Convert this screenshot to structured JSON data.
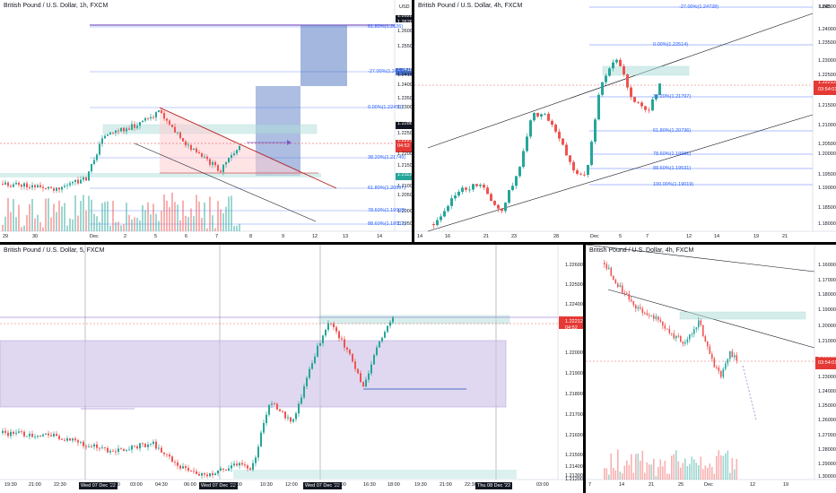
{
  "colors": {
    "bull": "#26a69a",
    "bear": "#ef5350",
    "fib": "#2962ff",
    "price_tag": "#e53935",
    "dark_tag": "#131722"
  },
  "currency": "USD",
  "panes": [
    {
      "title": "British Pound / U.S. Dollar, 1h, FXCM",
      "price_levels": [
        "1.26288",
        "1.26260",
        "1.26000",
        "1.25500",
        "1.25000",
        "1.24189",
        "1.24167",
        "1.24000",
        "1.23500",
        "1.23000",
        "1.22863",
        "1.22500",
        "1.22212",
        "04:52",
        "1.22000",
        "1.21500",
        "1.21122",
        "1.21000",
        "1.20500",
        "1.20000",
        "1.19500"
      ],
      "fib_labels": [
        "61.80%(1.2626)",
        "-27.00%(1.2418)",
        "0.00%(1.22453)",
        "38.20%(1.21749)",
        "61.80%(1.20897)",
        "78.60%(1.19998)",
        "88.60%(1.19502)"
      ],
      "time_labels": [
        "29",
        "30",
        "Dec",
        "2",
        "5",
        "6",
        "7",
        "8",
        "9",
        "12",
        "13",
        "14"
      ]
    },
    {
      "title": "British Pound / U.S. Dollar, 4h, FXCM",
      "price_levels": [
        "1.24500",
        "1.24000",
        "1.23500",
        "1.23000",
        "1.22500",
        "1.22212",
        "03:54:01",
        "1.21500",
        "1.21000",
        "1.20500",
        "1.20000",
        "1.19500",
        "1.19000",
        "1.18500",
        "1.18000"
      ],
      "fib_labels": [
        "-27.00%(1.24728)",
        "0.00%(1.22514)",
        "38.20%(1.21797)",
        "61.80%(1.20736)",
        "78.60%(1.19981)",
        "88.60%(1.19531)",
        "100.00%(1.19019)"
      ],
      "time_labels": [
        "14",
        "16",
        "21",
        "23",
        "28",
        "Dec",
        "5",
        "7",
        "12",
        "14",
        "19",
        "21"
      ]
    },
    {
      "title": "British Pound / U.S. Dollar, 5, FXCM",
      "price_levels": [
        "1.22600",
        "1.22500",
        "1.22400",
        "1.22300",
        "1.22212",
        "04:52",
        "1.22000",
        "1.21900",
        "1.21800",
        "1.21700",
        "1.21600",
        "1.21500",
        "1.21400",
        "1.21300",
        "1.21200"
      ],
      "time_labels": [
        "19:30",
        "21:00",
        "22:30",
        "Wed 07 Dec '22",
        "01:30",
        "03:00",
        "04:30",
        "06:00",
        "Wed 07 Dec '22",
        "08:00",
        "10:30",
        "12:00",
        "Wed 07 Dec '22",
        "14:00",
        "16:30",
        "18:00",
        "19:30",
        "21:00",
        "22:30",
        "Thu 08 Dec '22",
        "03:00"
      ]
    },
    {
      "title": "British Pound / U.S. Dollar, 4h, FXCM",
      "price_levels": [
        "1.16000",
        "1.17000",
        "1.18000",
        "1.19000",
        "1.20000",
        "1.21000",
        "1.22212",
        "03:54:01",
        "1.23000",
        "1.24000",
        "1.25000",
        "1.26000",
        "1.27000",
        "1.28000",
        "1.29000",
        "1.30000"
      ],
      "time_labels": [
        "7",
        "14",
        "21",
        "25",
        "Dec",
        "12",
        "19"
      ]
    }
  ]
}
